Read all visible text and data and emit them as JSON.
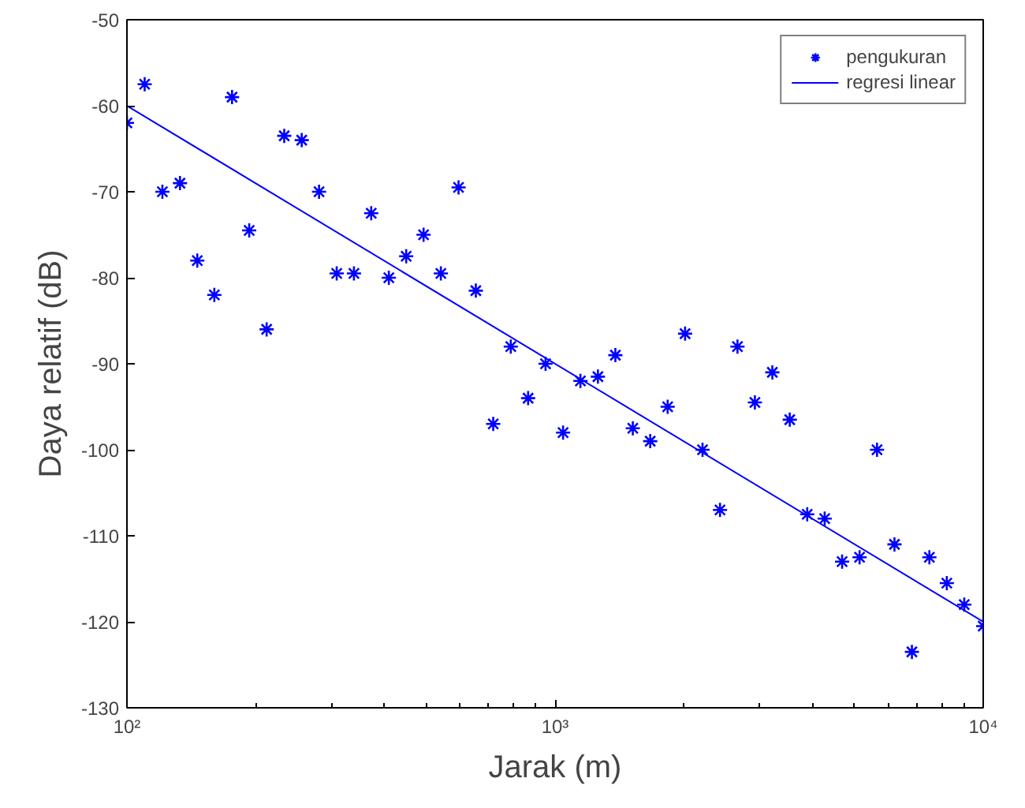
{
  "chart_data": {
    "type": "scatter",
    "xlabel": "Jarak (m)",
    "ylabel": "Daya relatif (dB)",
    "log": "x",
    "xlim": [
      100,
      10000
    ],
    "xticks": [
      {
        "value": 100,
        "label": "10²"
      },
      {
        "value": 1000,
        "label": "10³"
      },
      {
        "value": 10000,
        "label": "10⁴"
      }
    ],
    "ylim": [
      -130,
      -50
    ],
    "yticks": [
      -130,
      -120,
      -110,
      -100,
      -90,
      -80,
      -70,
      -60,
      -50
    ],
    "grid": false,
    "legend": "top right",
    "series": [
      {
        "name": "pengukuran",
        "marker": "cross",
        "color": "#0000ff",
        "x": [
          100,
          110,
          121,
          133,
          146,
          160,
          176,
          193,
          212,
          233,
          256,
          281,
          309,
          339,
          372,
          409,
          449,
          493,
          541,
          595,
          653,
          717,
          788,
          865,
          950,
          1044,
          1146,
          1259,
          1383,
          1519,
          1668,
          1832,
          2012,
          2210,
          2428,
          2667,
          2929,
          3217,
          3533,
          3881,
          4263,
          4682,
          5143,
          5649,
          6205,
          6815,
          7486,
          8222,
          9031,
          10000
        ],
        "values": [
          -62,
          -57.5,
          -70,
          -69,
          -78,
          -82,
          -59,
          -74.5,
          -86,
          -63.5,
          -64,
          -70,
          -79.5,
          -79.5,
          -72.5,
          -80,
          -77.5,
          -75,
          -79.5,
          -69.5,
          -81.5,
          -97,
          -88,
          -94,
          -90,
          -98,
          -92,
          -91.5,
          -89,
          -97.5,
          -99,
          -95,
          -86.5,
          -100,
          -107,
          -88,
          -94.5,
          -91,
          -96.5,
          -107.5,
          -108,
          -113,
          -112.5,
          -100,
          -111,
          -123.5,
          -112.5,
          -115.5,
          -118,
          -120.5
        ]
      },
      {
        "name": "regresi linear",
        "type": "line",
        "color": "#0000ff",
        "line_style": "solid",
        "x": [
          100,
          10000
        ],
        "values": [
          -60,
          -120
        ]
      }
    ]
  }
}
